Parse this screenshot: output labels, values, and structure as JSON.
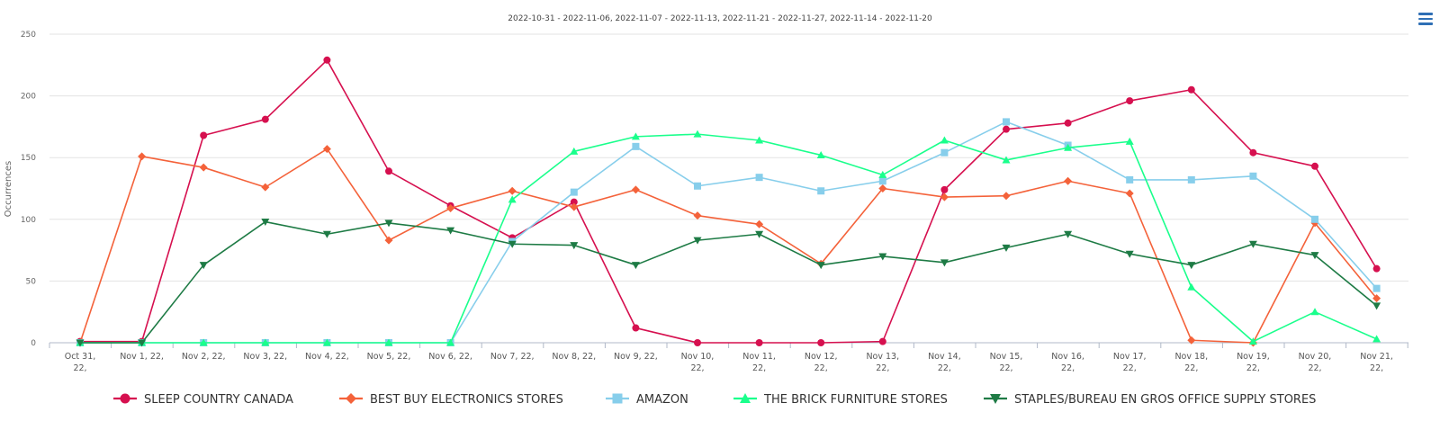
{
  "chart_data": {
    "type": "line",
    "title": "2022-10-31 - 2022-11-06, 2022-11-07 - 2022-11-13, 2022-11-21 - 2022-11-27, 2022-11-14 - 2022-11-20",
    "ylabel": "Occurrences",
    "xlabel": "",
    "ylim": [
      0,
      250
    ],
    "yticks": [
      0,
      50,
      100,
      150,
      200,
      250
    ],
    "grid": true,
    "legend_position": "bottom",
    "categories": [
      [
        "Oct 31,",
        "22,"
      ],
      [
        "Nov 1, 22,"
      ],
      [
        "Nov 2, 22,"
      ],
      [
        "Nov 3, 22,"
      ],
      [
        "Nov 4, 22,"
      ],
      [
        "Nov 5, 22,"
      ],
      [
        "Nov 6, 22,"
      ],
      [
        "Nov 7, 22,"
      ],
      [
        "Nov 8, 22,"
      ],
      [
        "Nov 9, 22,"
      ],
      [
        "Nov 10,",
        "22,"
      ],
      [
        "Nov 11,",
        "22,"
      ],
      [
        "Nov 12,",
        "22,"
      ],
      [
        "Nov 13,",
        "22,"
      ],
      [
        "Nov 14,",
        "22,"
      ],
      [
        "Nov 15,",
        "22,"
      ],
      [
        "Nov 16,",
        "22,"
      ],
      [
        "Nov 17,",
        "22,"
      ],
      [
        "Nov 18,",
        "22,"
      ],
      [
        "Nov 19,",
        "22,"
      ],
      [
        "Nov 20,",
        "22,"
      ],
      [
        "Nov 21,",
        "22,"
      ]
    ],
    "series": [
      {
        "name": "SLEEP COUNTRY CANADA",
        "color": "#d6104f",
        "marker": "circle",
        "values": [
          1,
          1,
          168,
          181,
          229,
          139,
          111,
          85,
          114,
          12,
          0,
          0,
          0,
          1,
          124,
          173,
          178,
          196,
          205,
          154,
          143,
          60
        ]
      },
      {
        "name": "BEST BUY ELECTRONICS STORES",
        "color": "#f4623a",
        "marker": "diamond",
        "values": [
          0,
          151,
          142,
          126,
          157,
          83,
          109,
          123,
          110,
          124,
          103,
          96,
          64,
          125,
          118,
          119,
          131,
          121,
          2,
          0,
          97,
          36
        ]
      },
      {
        "name": "AMAZON",
        "color": "#87ceeb",
        "marker": "square",
        "values": [
          0,
          0,
          0,
          0,
          0,
          0,
          0,
          82,
          122,
          159,
          127,
          134,
          123,
          131,
          154,
          179,
          160,
          132,
          132,
          135,
          100,
          44
        ]
      },
      {
        "name": "THE BRICK FURNITURE STORES",
        "color": "#1aff8c",
        "marker": "triangle",
        "values": [
          0,
          0,
          0,
          0,
          0,
          0,
          0,
          116,
          155,
          167,
          169,
          164,
          152,
          136,
          164,
          148,
          158,
          163,
          45,
          1,
          25,
          3
        ]
      },
      {
        "name": "STAPLES/BUREAU EN GROS OFFICE SUPPLY STORES",
        "color": "#1e7b45",
        "marker": "triangle-down",
        "values": [
          0,
          0,
          63,
          98,
          88,
          97,
          91,
          80,
          79,
          63,
          83,
          88,
          63,
          70,
          65,
          77,
          88,
          72,
          63,
          80,
          71,
          30
        ]
      }
    ]
  },
  "menu": {
    "icon": "hamburger-menu-icon",
    "color": "#2f6fb5"
  }
}
